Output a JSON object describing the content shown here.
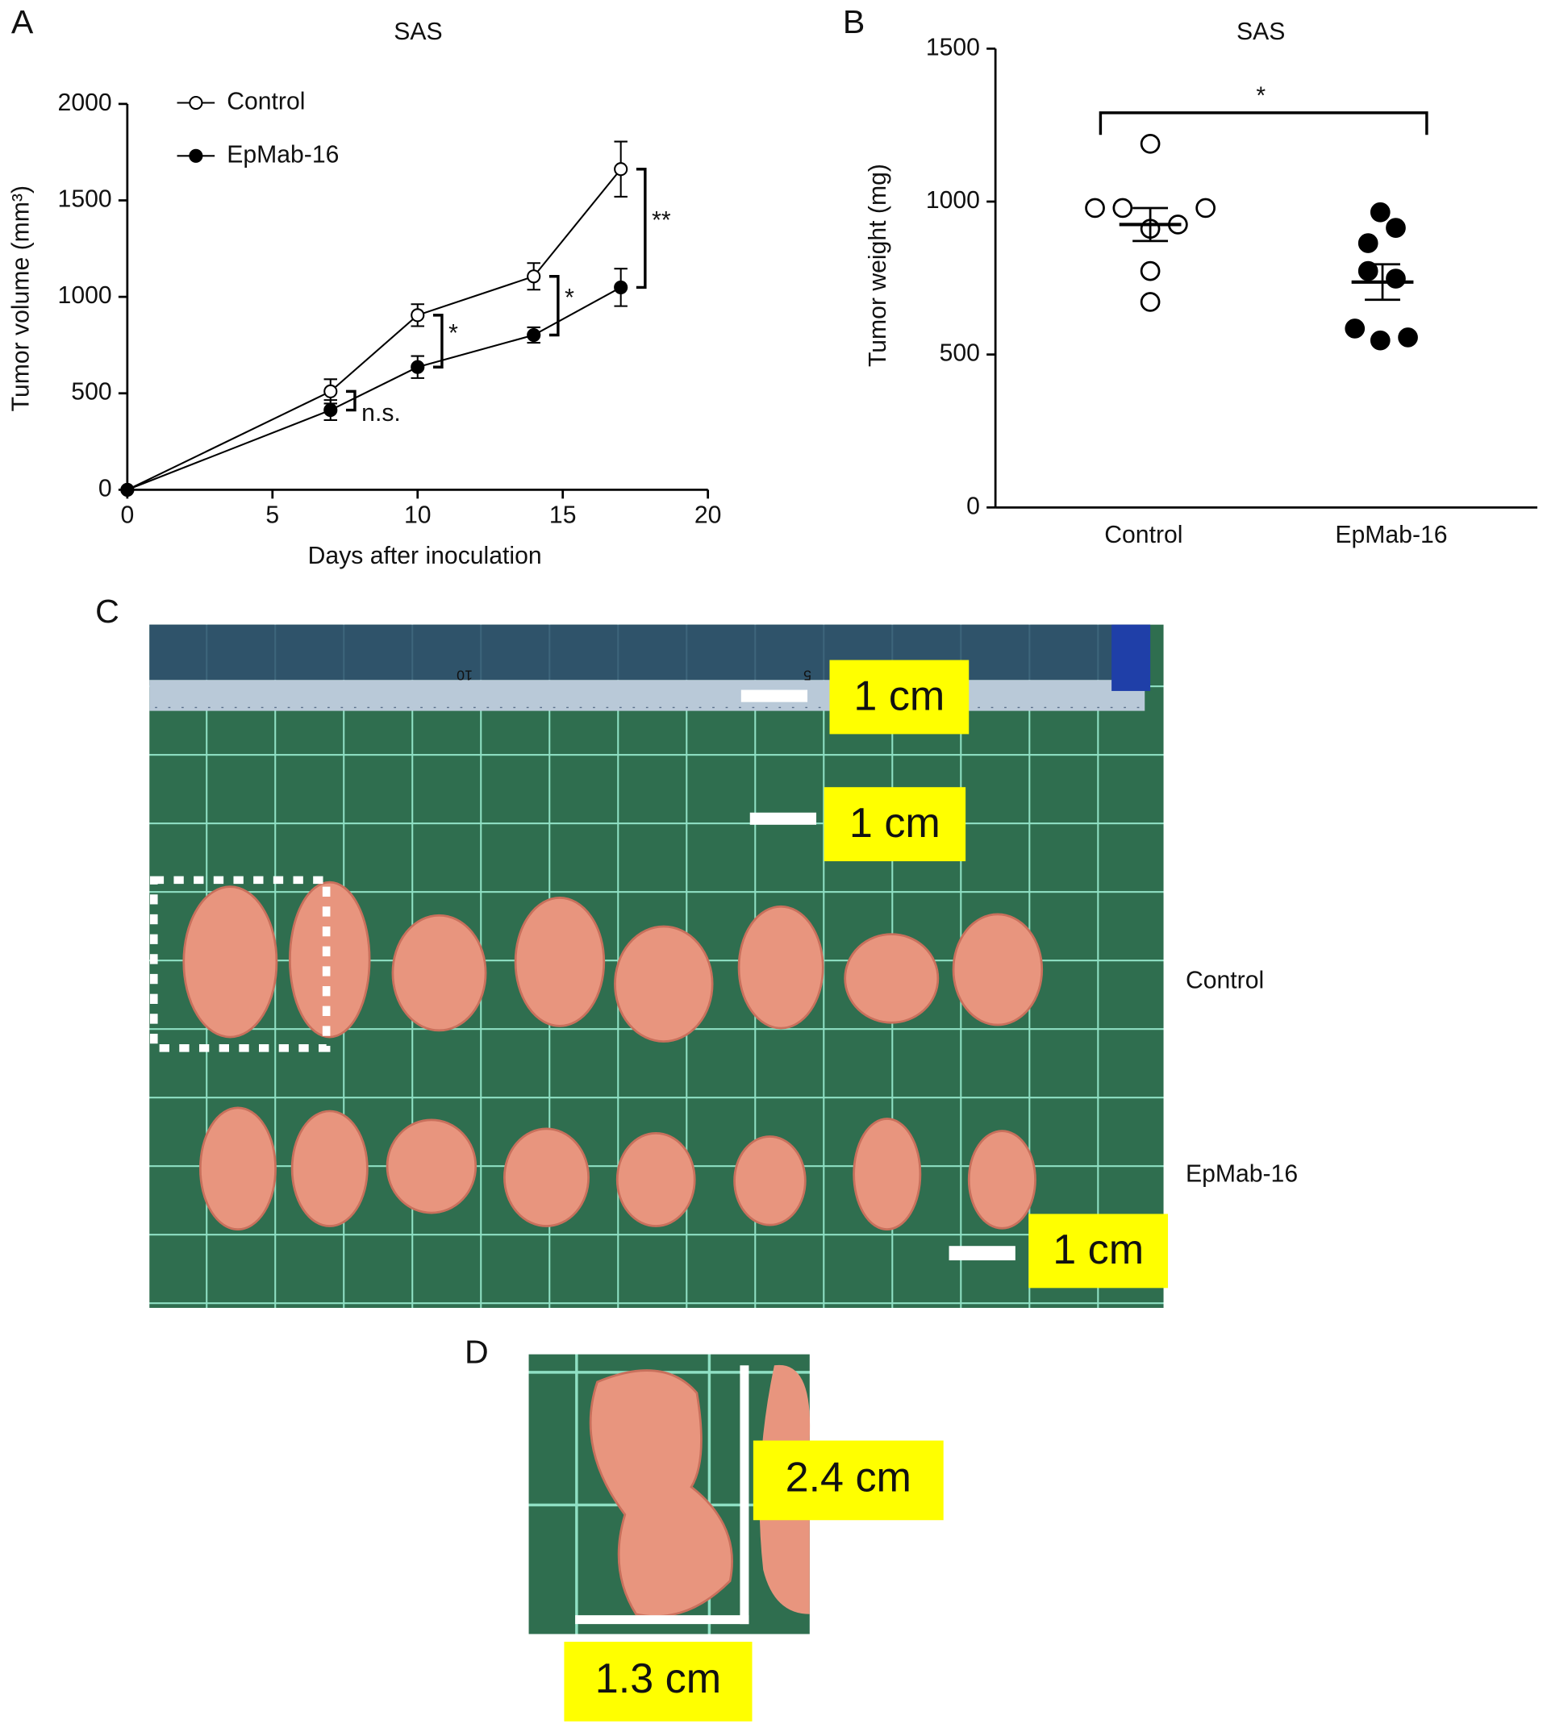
{
  "panel_labels": [
    "A",
    "B",
    "C",
    "D"
  ],
  "chart_data": [
    {
      "type": "line",
      "title": "SAS",
      "xlabel": "Days after inoculation",
      "ylabel": "Tumor volume (mm³)",
      "x": [
        0,
        7,
        10,
        14,
        17
      ],
      "series": [
        {
          "name": "Control",
          "color": "#000000",
          "fill": "#ffffff",
          "values": [
            0,
            510,
            905,
            1106,
            1662
          ],
          "errors": [
            0,
            63,
            57,
            69,
            143
          ]
        },
        {
          "name": "EpMab-16",
          "color": "#000000",
          "fill": "#000000",
          "values": [
            0,
            413,
            636,
            802,
            1049
          ],
          "errors": [
            0,
            52,
            57,
            40,
            97
          ]
        }
      ],
      "xlim": [
        0,
        20
      ],
      "xticks": [
        0,
        5,
        10,
        15,
        20
      ],
      "ylim": [
        0,
        2000
      ],
      "yticks": [
        0,
        500,
        1000,
        1500,
        2000
      ],
      "annotations": [
        "n.s.",
        "*",
        "*",
        "**"
      ]
    },
    {
      "type": "dot",
      "title": "SAS",
      "ylabel": "Tumor weight (mg)",
      "groups": [
        {
          "name": "Control",
          "fill": "#ffffff",
          "values": [
            979,
            979,
            979,
            1189,
            911,
            925,
            773,
            672
          ],
          "mean": 925,
          "sem": 54
        },
        {
          "name": "EpMab-16",
          "fill": "#000000",
          "values": [
            965,
            864,
            914,
            773,
            748,
            585,
            546,
            556
          ],
          "mean": 737,
          "sem": 58
        }
      ],
      "ylim": [
        0,
        1500
      ],
      "yticks": [
        0,
        500,
        1000,
        1500
      ],
      "annotation": "*"
    }
  ],
  "photo_c": {
    "ruler_labels": [
      "10",
      "5"
    ],
    "scale_labels": [
      "1 cm",
      "1 cm",
      "1 cm"
    ],
    "row_labels": [
      "Control",
      "EpMab-16"
    ]
  },
  "photo_d": {
    "labels": [
      "2.4 cm",
      "1.3 cm"
    ]
  }
}
